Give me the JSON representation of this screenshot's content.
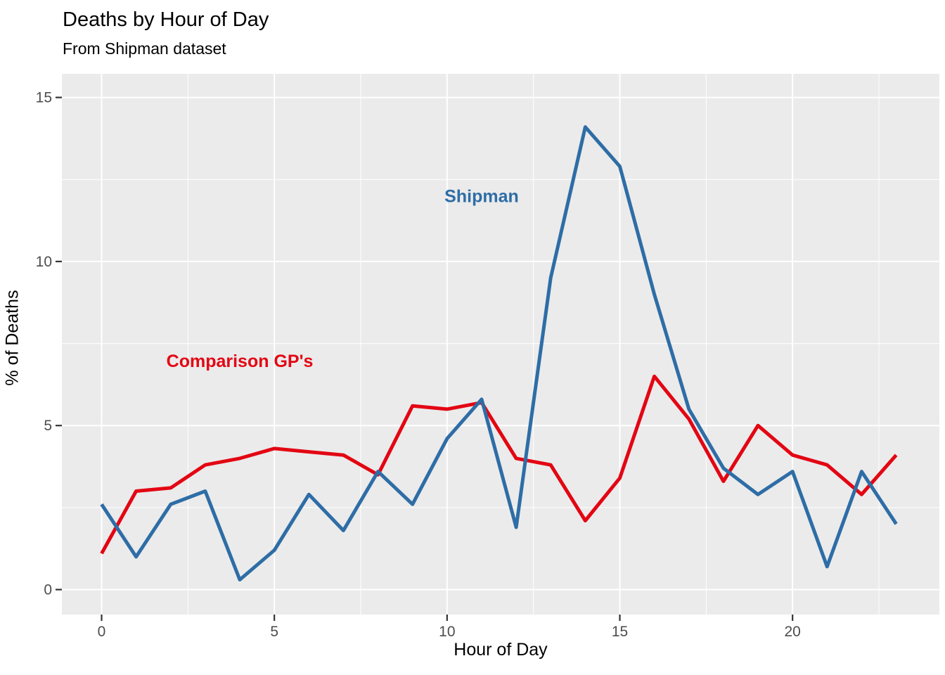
{
  "header": {
    "title": "Deaths by Hour of Day",
    "subtitle": "From Shipman dataset"
  },
  "chart_data": {
    "type": "line",
    "title": "Deaths by Hour of Day",
    "subtitle": "From Shipman dataset",
    "xlabel": "Hour of Day",
    "ylabel": "% of Deaths",
    "x": [
      0,
      1,
      2,
      3,
      4,
      5,
      6,
      7,
      8,
      9,
      10,
      11,
      12,
      13,
      14,
      15,
      16,
      17,
      18,
      19,
      20,
      21,
      22,
      23
    ],
    "series": [
      {
        "name": "Comparison GP's",
        "color": "#E30613",
        "values": [
          1.1,
          3.0,
          3.1,
          3.8,
          4.0,
          4.3,
          4.2,
          4.1,
          3.5,
          5.6,
          5.5,
          5.7,
          4.0,
          3.8,
          2.1,
          3.4,
          6.5,
          5.2,
          3.3,
          5.0,
          4.1,
          3.8,
          2.9,
          4.1
        ]
      },
      {
        "name": "Shipman",
        "color": "#2E6DA6",
        "values": [
          2.6,
          1.0,
          2.6,
          3.0,
          0.3,
          1.2,
          2.9,
          1.8,
          3.6,
          2.6,
          4.6,
          5.8,
          1.9,
          9.5,
          14.1,
          12.9,
          9.0,
          5.5,
          3.7,
          2.9,
          3.6,
          0.7,
          3.6,
          2.0
        ]
      }
    ],
    "annotations": [
      {
        "text": "Shipman",
        "x": 11.0,
        "y": 12.0,
        "color": "#2E6DA6"
      },
      {
        "text": "Comparison GP's",
        "x": 4.0,
        "y": 6.98,
        "color": "#E30613"
      }
    ],
    "axes": {
      "xlim": [
        -1.15,
        24.25
      ],
      "ylim": [
        -0.76,
        15.72
      ],
      "x_ticks_major": [
        0,
        5,
        10,
        15,
        20
      ],
      "x_ticks_minor": [
        2.5,
        7.5,
        12.5,
        17.5,
        22.5
      ],
      "y_ticks_major": [
        0,
        5,
        10,
        15
      ],
      "y_ticks_minor": [
        2.5,
        7.5,
        12.5
      ],
      "tick_label_color": "#4D4D4D",
      "tick_mark_color": "#333333"
    },
    "style": {
      "panel_bg": "#EBEBEB",
      "grid_color": "#FFFFFF",
      "line_width": 5,
      "legend": "none (direct line labels)",
      "grid": "major+minor, white on gray"
    }
  }
}
